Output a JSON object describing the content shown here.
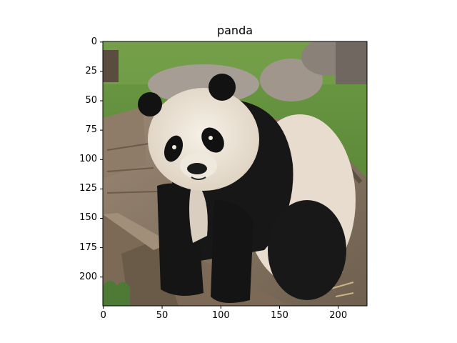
{
  "figure": {
    "title": "panda",
    "image_subject": "giant panda sitting on wooden logs in front of grass and boulders",
    "x_axis": {
      "ticks": [
        "0",
        "50",
        "100",
        "150",
        "200"
      ],
      "values": [
        0,
        50,
        100,
        150,
        200
      ],
      "range": [
        -0.5,
        224.5
      ]
    },
    "y_axis": {
      "ticks": [
        "0",
        "25",
        "50",
        "75",
        "100",
        "125",
        "150",
        "175",
        "200"
      ],
      "values": [
        0,
        25,
        50,
        75,
        100,
        125,
        150,
        175,
        200
      ],
      "range": [
        -0.5,
        224.5
      ],
      "inverted": true
    },
    "colors": {
      "grass": "#5f8a3a",
      "grass_light": "#7da04c",
      "rock": "#a39a92",
      "wood": "#8d7b67",
      "wood_dark": "#5e5141",
      "fur_white": "#ece4d8",
      "fur_black": "#161616"
    }
  }
}
